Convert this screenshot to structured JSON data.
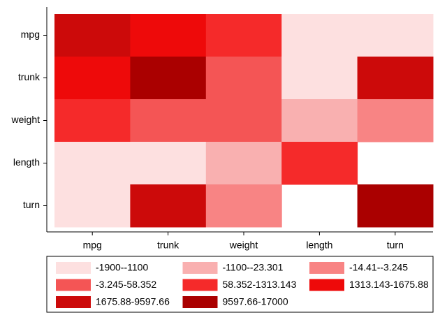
{
  "chart_data": {
    "type": "heatmap",
    "x_categories": [
      "mpg",
      "trunk",
      "weight",
      "length",
      "turn"
    ],
    "y_categories": [
      "mpg",
      "trunk",
      "weight",
      "length",
      "turn"
    ],
    "bins": [
      {
        "label": "-1900--1100",
        "color": "#fde0e0"
      },
      {
        "label": "-1100--23.301",
        "color": "#f9b0b0"
      },
      {
        "label": "-14.41--3.245",
        "color": "#f88484"
      },
      {
        "label": "-3.245-58.352",
        "color": "#f45555"
      },
      {
        "label": "58.352-1313.143",
        "color": "#f52a2a"
      },
      {
        "label": "1313.143-1675.88",
        "color": "#ee0a0a"
      },
      {
        "label": "1675.88-9597.66",
        "color": "#cc0a0a"
      },
      {
        "label": "9597.66-17000",
        "color": "#aa0000"
      }
    ],
    "cells": [
      [
        6,
        5,
        4,
        0,
        0
      ],
      [
        5,
        7,
        3,
        0,
        6
      ],
      [
        4,
        3,
        3,
        1,
        2
      ],
      [
        0,
        0,
        1,
        4,
        null
      ],
      [
        0,
        6,
        2,
        null,
        7
      ]
    ]
  }
}
